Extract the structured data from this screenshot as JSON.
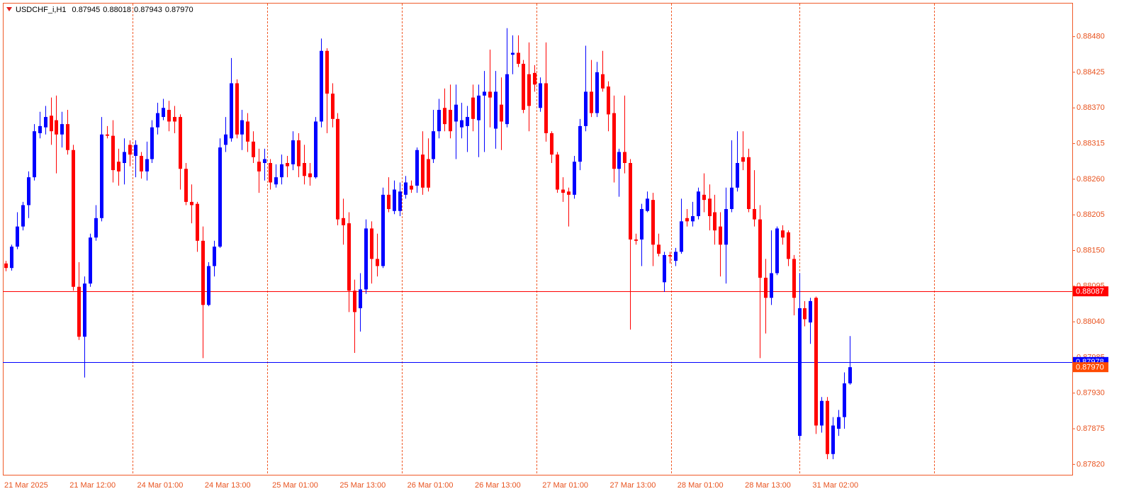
{
  "chart_data": {
    "type": "candlestick",
    "title": "USDCHF_i,H1",
    "header_values": [
      "0.87945",
      "0.88018",
      "0.87943",
      "0.87970"
    ],
    "categories": [
      "21 Mar 2025",
      null,
      null,
      null,
      null,
      null,
      null,
      null,
      null,
      null,
      null,
      null,
      "21 Mar 12:00",
      null,
      null,
      null,
      null,
      null,
      null,
      null,
      null,
      null,
      null,
      null,
      "24 Mar 01:00",
      null,
      null,
      null,
      null,
      null,
      null,
      null,
      null,
      null,
      null,
      null,
      "24 Mar 13:00",
      null,
      null,
      null,
      null,
      null,
      null,
      null,
      null,
      null,
      null,
      null,
      "25 Mar 01:00",
      null,
      null,
      null,
      null,
      null,
      null,
      null,
      null,
      null,
      null,
      null,
      "25 Mar 13:00",
      null,
      null,
      null,
      null,
      null,
      null,
      null,
      null,
      null,
      null,
      null,
      "26 Mar 01:00",
      null,
      null,
      null,
      null,
      null,
      null,
      null,
      null,
      null,
      null,
      null,
      "26 Mar 13:00",
      null,
      null,
      null,
      null,
      null,
      null,
      null,
      null,
      null,
      null,
      null,
      "27 Mar 01:00",
      null,
      null,
      null,
      null,
      null,
      null,
      null,
      null,
      null,
      null,
      null,
      "27 Mar 13:00",
      null,
      null,
      null,
      null,
      null,
      null,
      null,
      null,
      null,
      null,
      null,
      "28 Mar 01:00",
      null,
      null,
      null,
      null,
      null,
      null,
      null,
      null,
      null,
      null,
      null,
      "28 Mar 13:00",
      null,
      null,
      null,
      null,
      null,
      null,
      null,
      null,
      null,
      null,
      null,
      "31 Mar 02:00",
      null,
      null,
      null,
      null,
      null,
      null
    ],
    "open": [
      0.8813,
      0.88123,
      0.88156,
      0.88187,
      0.8822,
      0.88263,
      0.88331,
      0.8834,
      0.88358,
      0.88351,
      0.88329,
      0.88345,
      0.88305,
      0.88094,
      0.88017,
      0.88099,
      0.8817,
      0.882,
      0.88329,
      0.88327,
      0.88287,
      0.88285,
      0.88313,
      0.88296,
      0.88296,
      0.88272,
      0.88291,
      0.8834,
      0.88356,
      0.88367,
      0.88356,
      0.88356,
      0.88276,
      0.88225,
      0.88222,
      0.88165,
      0.88066,
      0.88126,
      0.88156,
      0.88313,
      0.88323,
      0.88408,
      0.88329,
      0.88349,
      0.88318,
      0.88287,
      0.88285,
      0.88285,
      0.88252,
      0.88263,
      0.88285,
      0.88283,
      0.8832,
      0.88285,
      0.88269,
      0.88263,
      0.88349,
      0.88458,
      0.88392,
      0.88353,
      0.882,
      0.88192,
      0.88088,
      0.88061,
      0.8809,
      0.88184,
      0.88137,
      0.88126,
      0.88236,
      0.88211,
      0.88211,
      0.88236,
      0.8825,
      0.8825,
      0.88298,
      0.88291,
      0.88291,
      0.88334,
      0.8837,
      0.88367,
      0.88349,
      0.8834,
      0.88342,
      0.88386,
      0.88351,
      0.88389,
      0.88395,
      0.88338,
      0.88375,
      0.88345,
      0.88452,
      0.88455,
      0.88438,
      0.88422,
      0.88424,
      0.8837,
      0.88408,
      0.88331,
      0.88298,
      0.88244,
      0.88241,
      0.88236,
      0.88287,
      0.88342,
      0.88395,
      0.88362,
      0.88422,
      0.88403,
      0.88362,
      0.88276,
      0.88302,
      0.88285,
      0.88167,
      0.88167,
      0.88211,
      0.88228,
      0.88159,
      0.88101,
      0.88143,
      0.88134,
      0.88148,
      0.882,
      0.88195,
      0.88203,
      0.88236,
      0.8823,
      0.88209,
      0.88187,
      0.88159,
      0.88214,
      0.88247,
      0.88294,
      0.88294,
      0.88214,
      0.88198,
      0.88108,
      0.88077,
      0.88115,
      0.88181,
      0.88178,
      0.88137,
      0.87864,
      0.88061,
      0.88039,
      0.88077,
      0.8788,
      0.87918,
      0.87836,
      0.87875,
      0.87893,
      0.87945
    ],
    "high": [
      0.88134,
      0.88159,
      0.88209,
      0.88225,
      0.88272,
      0.88345,
      0.88364,
      0.88373,
      0.88386,
      0.88389,
      0.88364,
      0.88367,
      0.88313,
      0.88132,
      0.8811,
      0.88176,
      0.8822,
      0.88356,
      0.88342,
      0.88351,
      0.88307,
      0.88323,
      0.8832,
      0.8832,
      0.88302,
      0.88318,
      0.88351,
      0.88378,
      0.88384,
      0.88381,
      0.88373,
      0.8836,
      0.88285,
      0.88252,
      0.88225,
      0.88187,
      0.88132,
      0.88165,
      0.88323,
      0.88356,
      0.88447,
      0.88414,
      0.88367,
      0.88362,
      0.88334,
      0.88307,
      0.88307,
      0.88291,
      0.88283,
      0.88298,
      0.88296,
      0.88334,
      0.88331,
      0.88313,
      0.88285,
      0.88356,
      0.88477,
      0.88462,
      0.88408,
      0.88362,
      0.8823,
      0.88209,
      0.88105,
      0.88115,
      0.88198,
      0.88195,
      0.88176,
      0.88247,
      0.88263,
      0.88258,
      0.88255,
      0.88265,
      0.88258,
      0.88309,
      0.88334,
      0.88323,
      0.88367,
      0.88384,
      0.884,
      0.88406,
      0.88406,
      0.88378,
      0.88373,
      0.88406,
      0.88406,
      0.88427,
      0.8846,
      0.88427,
      0.88417,
      0.88493,
      0.88482,
      0.88482,
      0.88444,
      0.88471,
      0.88436,
      0.88417,
      0.88471,
      0.88334,
      0.88302,
      0.88263,
      0.88247,
      0.88296,
      0.88353,
      0.88466,
      0.88444,
      0.88441,
      0.88458,
      0.88411,
      0.88389,
      0.88307,
      0.88389,
      0.88291,
      0.88176,
      0.88222,
      0.88241,
      0.88239,
      0.88176,
      0.88148,
      0.88148,
      0.88154,
      0.8823,
      0.88214,
      0.88225,
      0.88247,
      0.88269,
      0.88252,
      0.88236,
      0.88209,
      0.88247,
      0.8832,
      0.88334,
      0.88334,
      0.88307,
      0.88274,
      0.8822,
      0.88137,
      0.88181,
      0.88187,
      0.88189,
      0.88181,
      0.88143,
      0.88115,
      0.88072,
      0.88077,
      0.88079,
      0.87924,
      0.87924,
      0.87893,
      0.87904,
      0.87962,
      0.88018
    ],
    "low": [
      0.88118,
      0.88119,
      0.88152,
      0.88181,
      0.882,
      0.88258,
      0.88323,
      0.88329,
      0.88313,
      0.88269,
      0.88309,
      0.88298,
      0.88088,
      0.88012,
      0.87954,
      0.88094,
      0.88165,
      0.88195,
      0.88323,
      0.88255,
      0.8825,
      0.88252,
      0.8828,
      0.88263,
      0.88261,
      0.88258,
      0.88285,
      0.88329,
      0.88351,
      0.88334,
      0.88331,
      0.88244,
      0.8822,
      0.88192,
      0.88148,
      0.87984,
      0.88064,
      0.8811,
      0.88154,
      0.88302,
      0.88318,
      0.88323,
      0.88305,
      0.88302,
      0.88285,
      0.88239,
      0.88258,
      0.88244,
      0.88247,
      0.88252,
      0.88263,
      0.88274,
      0.88263,
      0.88252,
      0.8825,
      0.88261,
      0.8834,
      0.88331,
      0.8834,
      0.88189,
      0.88159,
      0.88055,
      0.87992,
      0.88025,
      0.88083,
      0.88099,
      0.8811,
      0.88123,
      0.88209,
      0.88206,
      0.88203,
      0.8823,
      0.88239,
      0.88239,
      0.88236,
      0.88241,
      0.88285,
      0.88323,
      0.88334,
      0.88323,
      0.88291,
      0.88323,
      0.88302,
      0.88334,
      0.88294,
      0.88302,
      0.8834,
      0.88307,
      0.88305,
      0.8834,
      0.88422,
      0.88433,
      0.88362,
      0.88334,
      0.88395,
      0.88364,
      0.88318,
      0.88285,
      0.88239,
      0.88225,
      0.88187,
      0.8823,
      0.88274,
      0.88334,
      0.88356,
      0.88356,
      0.88395,
      0.88334,
      0.88255,
      0.88233,
      0.88269,
      0.88028,
      0.88159,
      0.88126,
      0.88209,
      0.88126,
      0.88141,
      0.88086,
      0.8813,
      0.88126,
      0.88145,
      0.88187,
      0.88187,
      0.88198,
      0.88209,
      0.88181,
      0.88159,
      0.8811,
      0.88099,
      0.88209,
      0.88241,
      0.88274,
      0.88209,
      0.88187,
      0.87984,
      0.88022,
      0.88066,
      0.88112,
      0.88159,
      0.88126,
      0.8805,
      0.87858,
      0.88033,
      0.88006,
      0.87867,
      0.87869,
      0.87828,
      0.87828,
      0.87864,
      0.87875,
      0.87943
    ],
    "close": [
      0.88123,
      0.88156,
      0.88187,
      0.8822,
      0.88263,
      0.88334,
      0.88342,
      0.88356,
      0.88334,
      0.88329,
      0.88345,
      0.88305,
      0.88094,
      0.88017,
      0.88099,
      0.8817,
      0.882,
      0.88329,
      0.88327,
      0.88274,
      0.88272,
      0.88302,
      0.88298,
      0.88313,
      0.88272,
      0.88291,
      0.8834,
      0.88362,
      0.8837,
      0.88349,
      0.88349,
      0.88276,
      0.88225,
      0.8822,
      0.88165,
      0.88066,
      0.88126,
      0.88156,
      0.88309,
      0.88329,
      0.88408,
      0.88329,
      0.88351,
      0.88318,
      0.88294,
      0.88272,
      0.88291,
      0.88255,
      0.88263,
      0.88283,
      0.8828,
      0.8832,
      0.8828,
      0.88265,
      0.88263,
      0.88349,
      0.88458,
      0.88392,
      0.88353,
      0.88198,
      0.88189,
      0.88088,
      0.88055,
      0.8809,
      0.88184,
      0.88137,
      0.88126,
      0.88236,
      0.88214,
      0.88244,
      0.88241,
      0.88255,
      0.88244,
      0.88305,
      0.88247,
      0.88247,
      0.88334,
      0.88367,
      0.88345,
      0.88334,
      0.88375,
      0.88351,
      0.88356,
      0.88353,
      0.88389,
      0.88395,
      0.88386,
      0.88395,
      0.88349,
      0.88422,
      0.88455,
      0.88438,
      0.88367,
      0.88373,
      0.88406,
      0.88408,
      0.88331,
      0.88298,
      0.88244,
      0.88239,
      0.88236,
      0.88287,
      0.88342,
      0.88395,
      0.88362,
      0.88425,
      0.884,
      0.8836,
      0.88276,
      0.88302,
      0.88285,
      0.88167,
      0.88165,
      0.88214,
      0.8823,
      0.88159,
      0.88145,
      0.88143,
      0.88141,
      0.88148,
      0.88195,
      0.88195,
      0.88203,
      0.88241,
      0.88228,
      0.88203,
      0.88181,
      0.88159,
      0.88214,
      0.88247,
      0.88285,
      0.88287,
      0.88214,
      0.88198,
      0.88108,
      0.88077,
      0.88115,
      0.88184,
      0.8817,
      0.88137,
      0.88077,
      0.88061,
      0.88044,
      0.88072,
      0.8788,
      0.87918,
      0.87836,
      0.8788,
      0.87893,
      0.87945,
      0.8797
    ],
    "up_color": "#0000ff",
    "down_color": "#ff0000",
    "ylim": [
      0.87804,
      0.88531
    ],
    "yticks": [
      {
        "value": 0.8848,
        "label": "0.88480"
      },
      {
        "value": 0.88425,
        "label": "0.88425"
      },
      {
        "value": 0.8837,
        "label": "0.88370"
      },
      {
        "value": 0.88315,
        "label": "0.88315"
      },
      {
        "value": 0.8826,
        "label": "0.88260"
      },
      {
        "value": 0.88205,
        "label": "0.88205"
      },
      {
        "value": 0.8815,
        "label": "0.88150"
      },
      {
        "value": 0.88095,
        "label": "0.88095"
      },
      {
        "value": 0.8804,
        "label": "0.88040"
      },
      {
        "value": 0.87985,
        "label": "0.87985"
      },
      {
        "value": 0.8793,
        "label": "0.87930"
      },
      {
        "value": 0.87875,
        "label": "0.87875"
      },
      {
        "value": 0.8782,
        "label": "0.87820"
      }
    ],
    "levels": [
      {
        "value": 0.88087,
        "label": "0.88087",
        "color": "#ff0000"
      },
      {
        "value": 0.87978,
        "label": "0.87978",
        "color": "#0000ff"
      }
    ],
    "bid": {
      "value": 0.8797,
      "label": "0.87970",
      "color": "#ff4a00"
    },
    "grid": false
  }
}
